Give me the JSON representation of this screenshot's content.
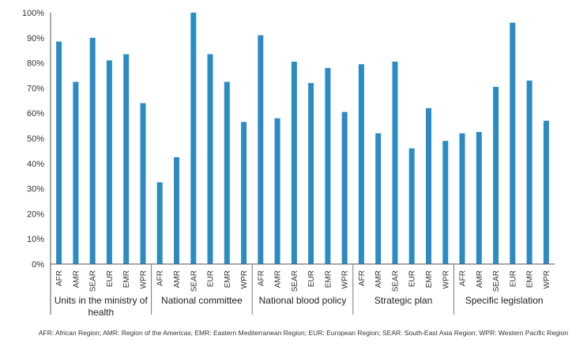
{
  "chart_data": {
    "type": "bar",
    "ylim": [
      0,
      100
    ],
    "yticks": [
      "0%",
      "10%",
      "20%",
      "30%",
      "40%",
      "50%",
      "60%",
      "70%",
      "80%",
      "90%",
      "100%"
    ],
    "grid": false,
    "bar_color": "#2b8cc4",
    "groups": [
      {
        "label": "Units in the ministry of health",
        "label_lines": [
          "Units in the ministry of",
          "health"
        ],
        "categories": [
          "AFR",
          "AMR",
          "SEAR",
          "EUR",
          "EMR",
          "WPR"
        ],
        "values": [
          88.5,
          72.5,
          90,
          81,
          83.5,
          64
        ]
      },
      {
        "label": "National committee",
        "label_lines": [
          "National committee"
        ],
        "categories": [
          "AFR",
          "AMR",
          "SEAR",
          "EUR",
          "EMR",
          "WPR"
        ],
        "values": [
          32.5,
          42.5,
          100,
          83.5,
          72.5,
          56.5
        ]
      },
      {
        "label": "National blood policy",
        "label_lines": [
          "National blood policy"
        ],
        "categories": [
          "AFR",
          "AMR",
          "SEAR",
          "EUR",
          "EMR",
          "WPR"
        ],
        "values": [
          91,
          58,
          80.5,
          72,
          78,
          60.5
        ]
      },
      {
        "label": "Strategic plan",
        "label_lines": [
          "Strategic plan"
        ],
        "categories": [
          "AFR",
          "AMR",
          "SEAR",
          "EUR",
          "EMR",
          "WPR"
        ],
        "values": [
          79.5,
          52,
          80.5,
          46,
          62,
          49
        ]
      },
      {
        "label": "Specific legislation",
        "label_lines": [
          "Specific legislation"
        ],
        "categories": [
          "AFR",
          "AMR",
          "SEAR",
          "EUR",
          "EMR",
          "WPR"
        ],
        "values": [
          52,
          52.5,
          70.5,
          96,
          73,
          57
        ]
      }
    ],
    "footnote": "AFR: African Region; AMR: Region of the Americas; EMR: Eastern Mediterranean Region; EUR: European Region; SEAR: South-East Asia Region; WPR: Western Pacific Region"
  }
}
